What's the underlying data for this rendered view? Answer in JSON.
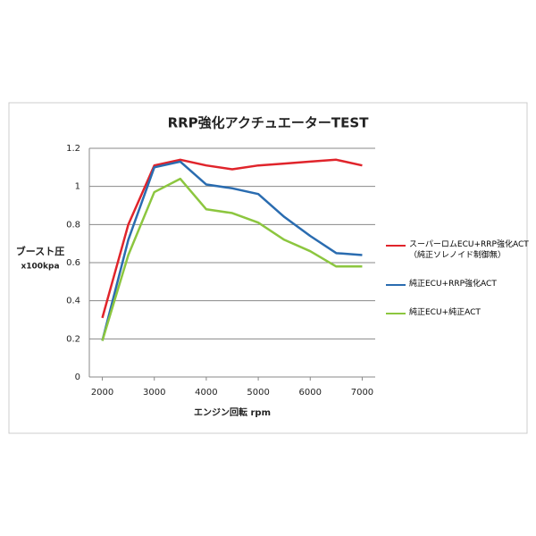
{
  "chart_data": {
    "type": "line",
    "title": "RRP強化アクチュエーターTEST",
    "y_label": "ブースト圧",
    "y_unit": "x100kpa",
    "x_label": "エンジン回転 rpm",
    "x": [
      2000,
      2500,
      3000,
      3500,
      4000,
      4500,
      5000,
      5500,
      6000,
      6500,
      7000
    ],
    "series": [
      {
        "name": "スーパーロムECU+RRP強化ACT\n（純正ソレノイド制御無）",
        "color": "#e0242b",
        "values": [
          0.31,
          0.8,
          1.11,
          1.14,
          1.11,
          1.09,
          1.11,
          1.12,
          1.13,
          1.14,
          1.11
        ]
      },
      {
        "name": "純正ECU+RRP強化ACT",
        "color": "#2a6cb0",
        "values": [
          0.19,
          0.72,
          1.1,
          1.13,
          1.01,
          0.99,
          0.96,
          0.84,
          0.74,
          0.65,
          0.64
        ]
      },
      {
        "name": "純正ECU+純正ACT",
        "color": "#8cc63f",
        "values": [
          0.19,
          0.64,
          0.97,
          1.04,
          0.88,
          0.86,
          0.81,
          0.72,
          0.66,
          0.58,
          0.58
        ]
      }
    ],
    "xlim": [
      1750,
      7250
    ],
    "xticks": [
      2000,
      3000,
      4000,
      5000,
      6000,
      7000
    ],
    "ylim": [
      0,
      1.2
    ],
    "yticks": [
      0,
      0.2,
      0.4,
      0.6,
      0.8,
      1,
      1.2
    ],
    "grid": true,
    "legend": "right"
  }
}
